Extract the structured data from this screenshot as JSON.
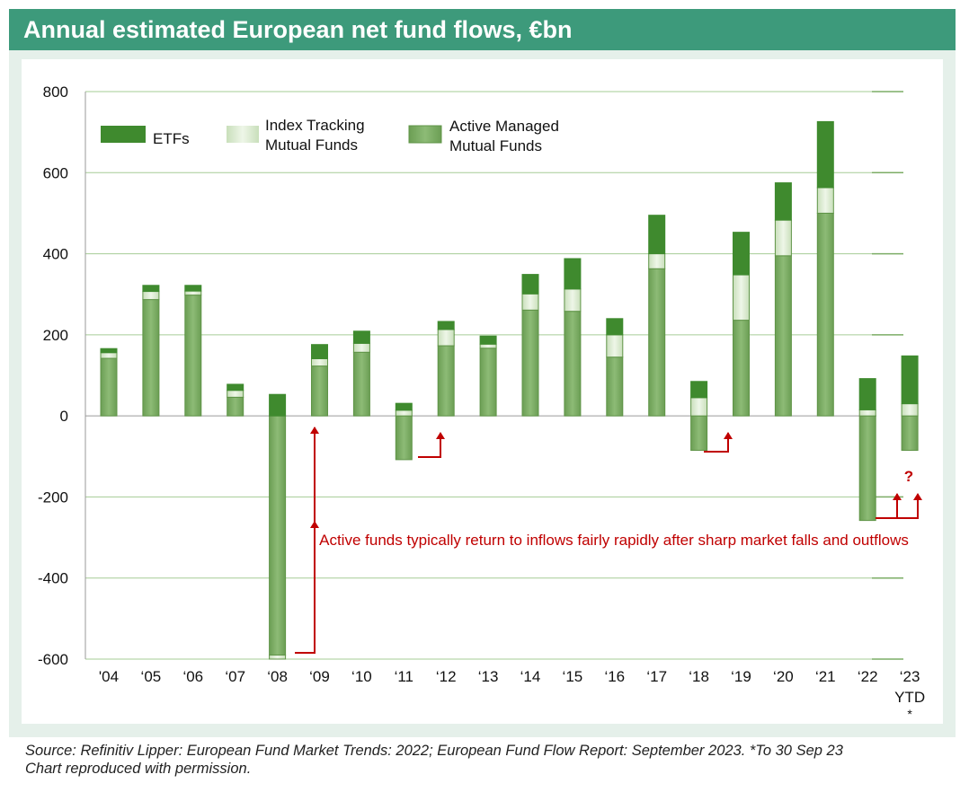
{
  "title": "Annual estimated European net fund flows, €bn",
  "source_lines": [
    "Source: Refinitiv Lipper: European Fund Market Trends: 2022; European Fund Flow Report: September 2023. *To 30 Sep 23",
    "Chart reproduced with permission."
  ],
  "annotation": "Active funds typically return to inflows fairly rapidly after sharp market falls and outflows",
  "question_mark": "?",
  "colors": {
    "header": "#3d9a7b",
    "etf": "#3f8a2e",
    "index": "#d7e8cc",
    "active": "#7cad66",
    "annotation": "#c00000"
  },
  "chart_data": {
    "type": "bar",
    "stacked": true,
    "categories": [
      "'04",
      "'05",
      "'06",
      "'07",
      "'08",
      "'09",
      "'10",
      "'11",
      "'12",
      "'13",
      "'14",
      "'15",
      "'16",
      "'17",
      "'18",
      "'19",
      "'20",
      "'21",
      "'22",
      "'23"
    ],
    "category_sublabels": {
      "'23": [
        "YTD",
        "*"
      ]
    },
    "tick_labels": [
      "'04",
      "‘05",
      "‘06",
      "‘07",
      "‘08",
      "‘09",
      "‘10",
      "‘11",
      "‘12",
      "‘13",
      "‘14",
      "‘15",
      "‘16",
      "‘17",
      "‘18",
      "‘19",
      "‘20",
      "‘21",
      "‘22",
      "‘23"
    ],
    "series": [
      {
        "name": "Active Managed Mutual Funds",
        "legend": [
          "Active Managed",
          "Mutual Funds"
        ],
        "color": "#7cad66",
        "values": [
          142,
          287,
          298,
          46,
          -590,
          123,
          157,
          -108,
          173,
          167,
          261,
          258,
          145,
          363,
          -85,
          236,
          395,
          500,
          -258,
          -85
        ]
      },
      {
        "name": "Index Tracking Mutual Funds",
        "legend": [
          "Index Tracking",
          "Mutual Funds"
        ],
        "color": "#d7e8cc",
        "values": [
          14,
          20,
          10,
          17,
          -10,
          18,
          22,
          14,
          40,
          10,
          40,
          55,
          55,
          37,
          45,
          112,
          88,
          63,
          15,
          30
        ]
      },
      {
        "name": "ETFs",
        "legend": [
          "ETFs"
        ],
        "color": "#3f8a2e",
        "values": [
          10,
          15,
          14,
          15,
          53,
          35,
          30,
          17,
          20,
          20,
          48,
          75,
          40,
          95,
          40,
          105,
          92,
          163,
          77,
          118
        ]
      }
    ],
    "ylim": [
      -600,
      800
    ],
    "yticks": [
      800,
      600,
      400,
      200,
      0,
      -200,
      -400,
      -600
    ],
    "grid": true,
    "legend_position": "top-left"
  }
}
